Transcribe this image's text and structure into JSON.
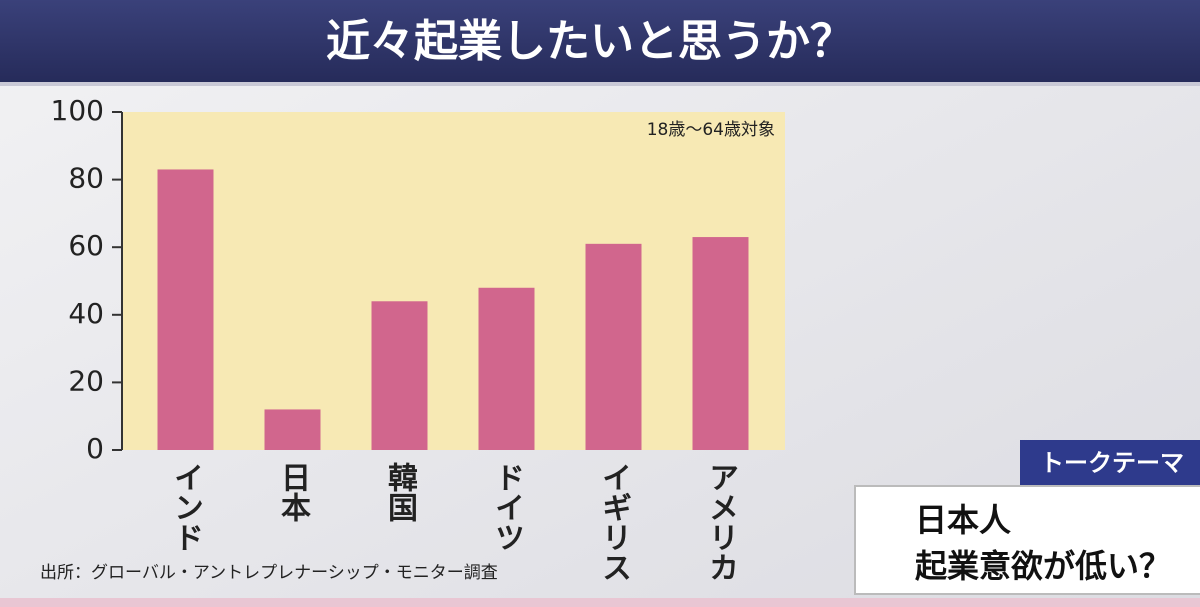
{
  "chart_data": {
    "type": "bar",
    "title": "近々起業したいと思うか？",
    "annotation": "18歳～64歳対象",
    "source": "出所：グローバル・アントレプレナーシップ・モニター調査",
    "categories": [
      "インド",
      "日本",
      "韓国",
      "ドイツ",
      "イギリス",
      "アメリカ"
    ],
    "values": [
      83,
      12,
      44,
      48,
      61,
      63
    ],
    "color": "#d1668d",
    "ylim": [
      0,
      100
    ],
    "yticks": [
      0,
      20,
      40,
      60,
      80,
      100
    ]
  },
  "talk_theme": {
    "tab": "トークテーマ",
    "lines": [
      "日本人",
      "起業意欲が低い？"
    ]
  }
}
